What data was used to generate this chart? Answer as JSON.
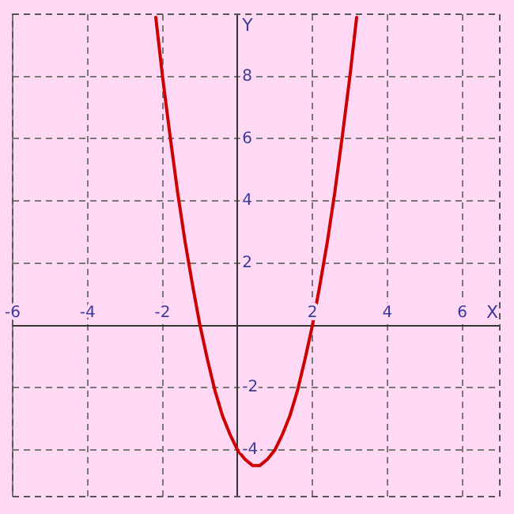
{
  "chart_data": {
    "type": "line",
    "xlabel": "X",
    "ylabel": "Y",
    "x": [
      -2.18,
      -2.0,
      -1.8,
      -1.6,
      -1.4,
      -1.2,
      -1.0,
      -0.8,
      -0.6,
      -0.4,
      -0.2,
      0,
      0.2,
      0.4,
      0.5,
      0.6,
      0.8,
      1.0,
      1.2,
      1.4,
      1.6,
      1.8,
      2.0,
      2.2,
      2.4,
      2.6,
      2.8,
      3.0,
      3.18
    ],
    "series": [
      {
        "color": "#cc0000",
        "values": [
          9.9,
          8.0,
          6.1,
          4.3,
          2.7,
          1.3,
          0.0,
          -1.1,
          -2.1,
          -2.9,
          -3.5,
          -4.0,
          -4.3,
          -4.5,
          -4.5,
          -4.5,
          -4.3,
          -4.0,
          -3.5,
          -2.9,
          -2.1,
          -1.1,
          0.0,
          1.3,
          2.7,
          4.3,
          6.1,
          8.0,
          9.9
        ]
      }
    ],
    "xlim": [
      -6,
      7
    ],
    "ylim": [
      -5.5,
      10
    ],
    "xticks": [
      -6,
      -4,
      -2,
      2,
      4,
      6
    ],
    "yticks": [
      -4,
      -2,
      2,
      4,
      6,
      8
    ],
    "grid": true,
    "legend": false,
    "marker": "none",
    "line_style": "solid"
  }
}
